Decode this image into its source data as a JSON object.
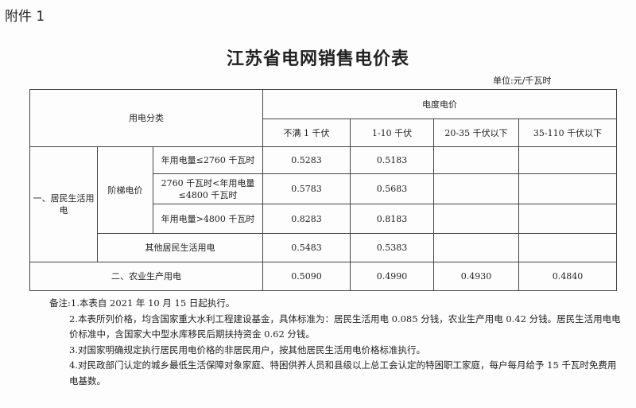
{
  "attachment_label": "附件 1",
  "title": "江苏省电网销售电价表",
  "unit": "单位:元/千瓦时",
  "table": {
    "category_header": "用电分类",
    "price_header": "电度电价",
    "voltage_headers": [
      "不满 1 千伏",
      "1-10 千伏",
      "20-35 千伏以下",
      "35-110 千伏以下"
    ],
    "residential_label": "一、居民生活用电",
    "tiered_label": "阶梯电价",
    "tiers": [
      {
        "label": "年用电量≤2760 千瓦时",
        "values": [
          "0.5283",
          "0.5183",
          "",
          ""
        ]
      },
      {
        "label": "2760 千瓦时<年用电量≤4800 千瓦时",
        "values": [
          "0.5783",
          "0.5683",
          "",
          ""
        ]
      },
      {
        "label": "年用电量>4800 千瓦时",
        "values": [
          "0.8283",
          "0.8183",
          "",
          ""
        ]
      }
    ],
    "other_residential": {
      "label": "其他居民生活用电",
      "values": [
        "0.5483",
        "0.5383",
        "",
        ""
      ]
    },
    "agriculture": {
      "label": "二、农业生产用电",
      "values": [
        "0.5090",
        "0.4990",
        "0.4930",
        "0.4840"
      ]
    }
  },
  "notes": {
    "label": "备注:",
    "items": [
      "1.本表自 2021 年 10 月 15 日起执行。",
      "2.本表所列价格，均含国家重大水利工程建设基金，具体标准为：居民生活用电 0.085 分钱，农业生产用电 0.42 分钱。居民生活用电电价标准中，含国家大中型水库移民后期扶持资金 0.62 分钱。",
      "3.对国家明确规定执行居民用电价格的非居民用户，按其他居民生活用电价格标准执行。",
      "4.对民政部门认定的城乡最低生活保障对象家庭、特困供养人员和县级以上总工会认定的特困职工家庭，每户每月给予 15 千瓦时免费用电基数。"
    ]
  }
}
